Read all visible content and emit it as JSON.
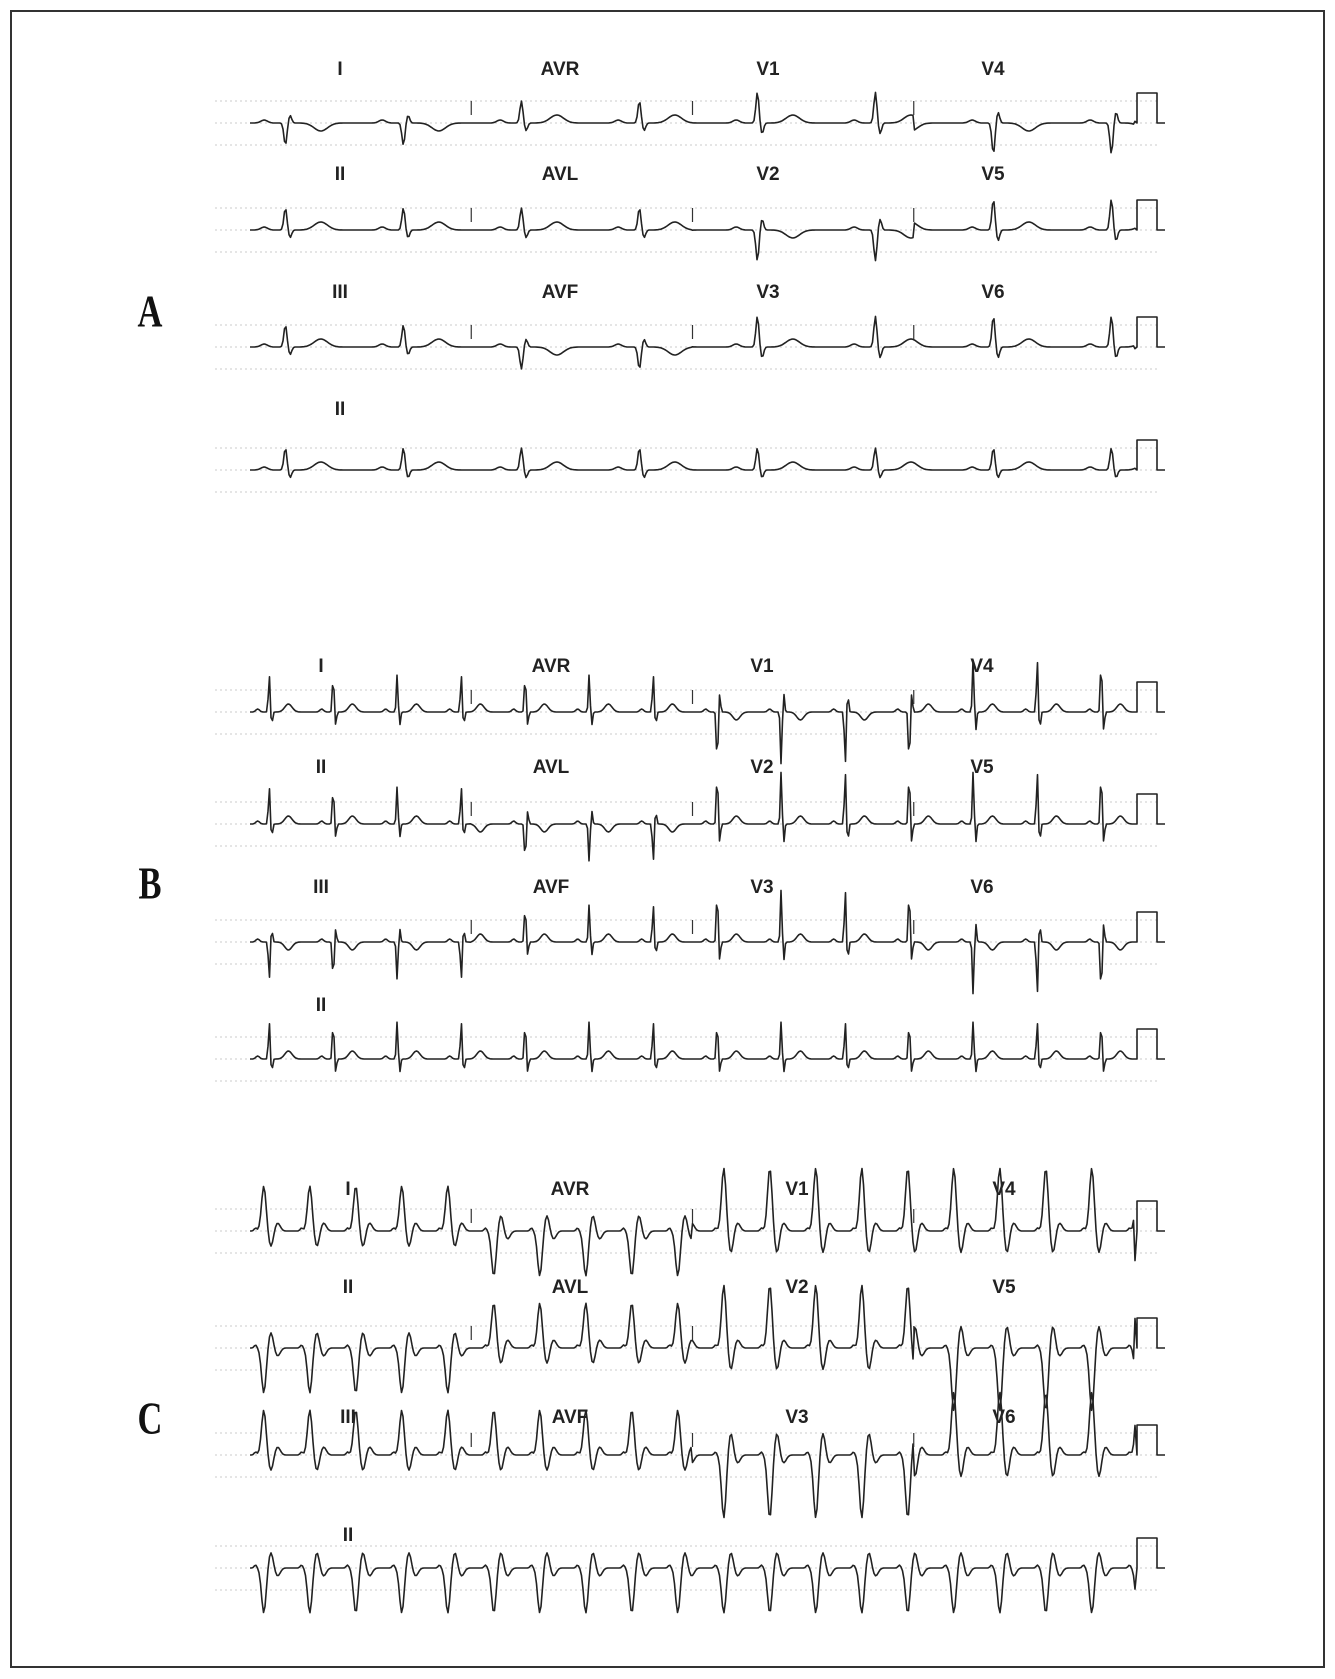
{
  "panels": [
    {
      "label": "A",
      "leads": [
        [
          "I",
          "AVR",
          "V1",
          "V4"
        ],
        [
          "II",
          "AVL",
          "V2",
          "V5"
        ],
        [
          "III",
          "AVF",
          "V3",
          "V6"
        ],
        [
          "II"
        ]
      ]
    },
    {
      "label": "B",
      "leads": [
        [
          "I",
          "AVR",
          "V1",
          "V4"
        ],
        [
          "II",
          "AVL",
          "V2",
          "V5"
        ],
        [
          "III",
          "AVF",
          "V3",
          "V6"
        ],
        [
          "II"
        ]
      ]
    },
    {
      "label": "C",
      "leads": [
        [
          "I",
          "AVR",
          "V1",
          "V4"
        ],
        [
          "II",
          "AVL",
          "V2",
          "V5"
        ],
        [
          "III",
          "AVF",
          "V3",
          "V6"
        ],
        [
          "II"
        ]
      ]
    }
  ]
}
